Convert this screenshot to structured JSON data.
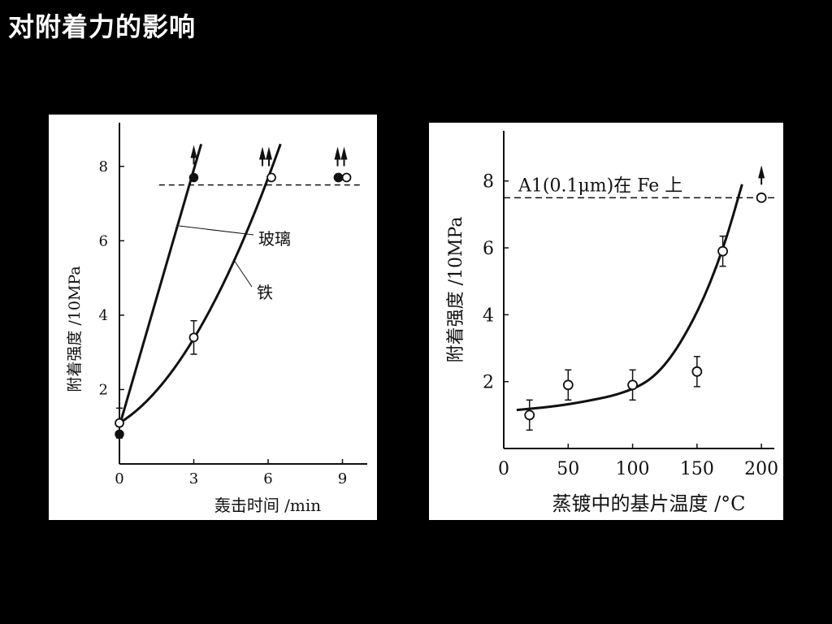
{
  "title": "对附着力的影响",
  "chart_data": [
    {
      "type": "line",
      "xlabel": "轰击时间 /min",
      "ylabel": "附着强度 /10MPa",
      "xlim": [
        0,
        10
      ],
      "ylim": [
        0,
        9
      ],
      "xticks": [
        0,
        3,
        6,
        9
      ],
      "yticks": [
        2,
        4,
        6,
        8
      ],
      "reference_line": 7.5,
      "series": [
        {
          "name": "玻璃",
          "points": [
            [
              0,
              0.8
            ],
            [
              3,
              7.7
            ]
          ],
          "arrow_points": [
            [
              3,
              7.7
            ]
          ],
          "marker": "filled"
        },
        {
          "name": "铁",
          "points": [
            [
              0,
              1.1
            ],
            [
              3,
              3.4
            ],
            [
              6,
              7.7
            ]
          ],
          "arrow_points": [
            [
              6,
              7.7
            ]
          ],
          "marker": "open"
        }
      ],
      "extra_points": [
        {
          "x": 9,
          "y": 7.7,
          "marker": "filled",
          "arrow": true
        },
        {
          "x": 9,
          "y": 7.7,
          "marker": "open",
          "arrow": true
        }
      ]
    },
    {
      "type": "scatter",
      "xlabel": "蒸镀中的基片温度 /°C",
      "ylabel": "附着强度 /10MPa",
      "xlim": [
        0,
        210
      ],
      "ylim": [
        0,
        9.5
      ],
      "xticks": [
        0,
        50,
        100,
        150,
        200
      ],
      "yticks": [
        2,
        4,
        6,
        8
      ],
      "reference_line": 7.5,
      "annotation": "A1(0.1μm)在 Fe 上",
      "points": [
        {
          "x": 20,
          "y": 1.0,
          "err": 0.45
        },
        {
          "x": 50,
          "y": 1.9,
          "err": 0.45
        },
        {
          "x": 100,
          "y": 1.9,
          "err": 0.45
        },
        {
          "x": 150,
          "y": 2.3,
          "err": 0.45
        },
        {
          "x": 170,
          "y": 5.9,
          "err": 0.45
        },
        {
          "x": 200,
          "y": 7.5,
          "err": 0,
          "arrow": true
        }
      ],
      "curve": [
        [
          10,
          1.15
        ],
        [
          50,
          1.3
        ],
        [
          100,
          1.7
        ],
        [
          125,
          2.4
        ],
        [
          150,
          4.0
        ],
        [
          170,
          5.9
        ],
        [
          185,
          7.9
        ]
      ]
    }
  ]
}
